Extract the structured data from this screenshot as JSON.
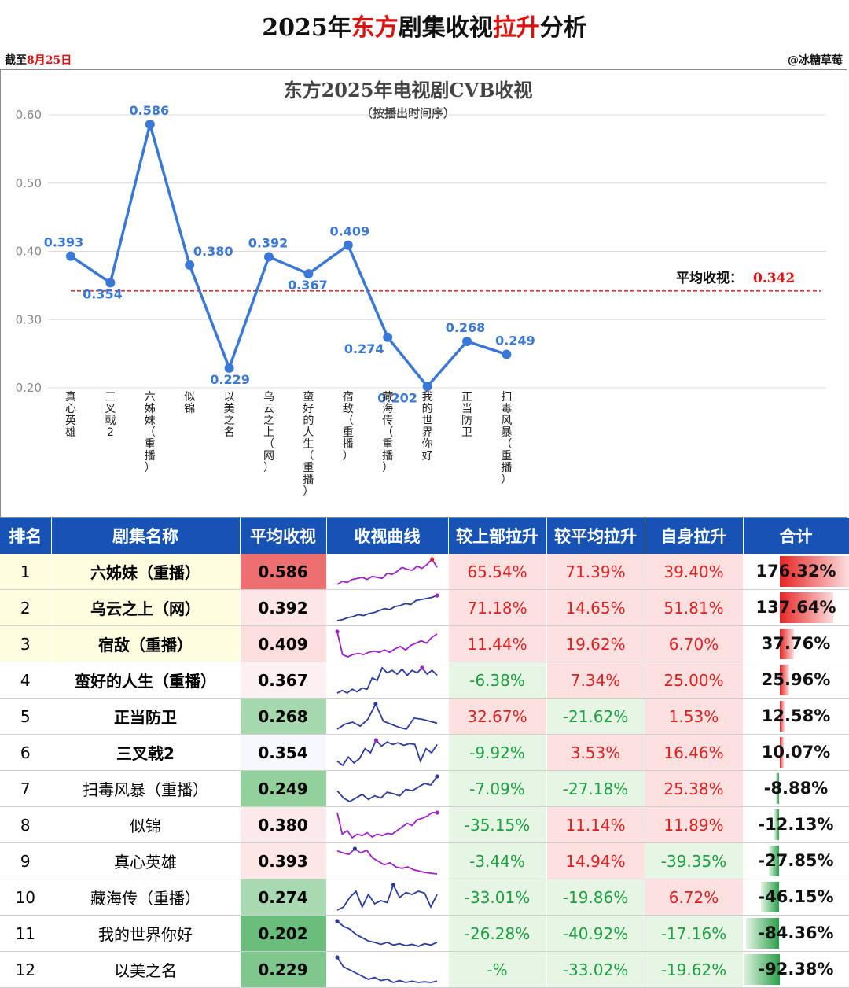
{
  "page": {
    "title_parts": [
      "2025年",
      "东方",
      "剧集收视",
      "拉升",
      "分析"
    ],
    "asof_prefix": "截至",
    "asof_date": "8月25日",
    "author": "@冰糖草莓"
  },
  "chart_data": {
    "type": "line",
    "title": "东方2025年电视剧CVB收视",
    "subtitle": "（按播出时间序）",
    "categories": [
      "真心英雄",
      "三叉戟2",
      "六姊妹（重播）",
      "似锦",
      "以美之名",
      "乌云之上（网）",
      "蛮好的人生（重播）",
      "宿敌（重播）",
      "藏海传（重播）",
      "我的世界你好",
      "正当防卫",
      "扫毒风暴（重播）"
    ],
    "values": [
      0.393,
      0.354,
      0.586,
      0.38,
      0.229,
      0.392,
      0.367,
      0.409,
      0.274,
      0.202,
      0.268,
      0.249
    ],
    "value_labels": [
      "0.393",
      "0.354",
      "0.586",
      "0.380",
      "0.229",
      "0.392",
      "0.367",
      "0.409",
      "0.274",
      "0.202",
      "0.268",
      "0.249"
    ],
    "yticks": [
      "0.20",
      "0.30",
      "0.40",
      "0.50",
      "0.60"
    ],
    "ylim": [
      0.2,
      0.6
    ],
    "grid": true,
    "average_label": "平均收视：",
    "average_value": 0.342,
    "average_text": "0.342",
    "line_color": "#3a78d8",
    "avg_color": "#e01010"
  },
  "table": {
    "headers": [
      "排名",
      "剧集名称",
      "平均收视",
      "收视曲线",
      "较上部拉升",
      "较平均拉升",
      "自身拉升",
      "合计"
    ],
    "header_color": "#1753b5",
    "rows": [
      {
        "rank": "1",
        "name": "六姊妹（重播）",
        "bold": true,
        "rating": "0.586",
        "rating_color": "#ee6f6f",
        "c1": "65.54%",
        "c2": "71.39%",
        "c3": "39.40%",
        "total": "176.32%",
        "total_value": 176.32,
        "spark": [
          0.55,
          0.58,
          0.57,
          0.6,
          0.61,
          0.62,
          0.6,
          0.63,
          0.62,
          0.61,
          0.66,
          0.65,
          0.68,
          0.72,
          0.7,
          0.69,
          0.73,
          0.71,
          0.75,
          0.8,
          0.72
        ],
        "spark_color": "#a020c8",
        "spark_end_color": "#e02020"
      },
      {
        "rank": "2",
        "name": "乌云之上（网）",
        "bold": true,
        "rating": "0.392",
        "rating_color": "#fce6e6",
        "c1": "71.18%",
        "c2": "14.65%",
        "c3": "51.81%",
        "total": "137.64%",
        "total_value": 137.64,
        "spark": [
          0.3,
          0.31,
          0.33,
          0.34,
          0.36,
          0.35,
          0.37,
          0.38,
          0.4,
          0.42,
          0.41,
          0.44,
          0.45,
          0.47,
          0.46,
          0.5,
          0.51,
          0.52,
          0.53,
          0.55
        ],
        "spark_color": "#2a3aa0",
        "spark_end_color": "#a020c8"
      },
      {
        "rank": "3",
        "name": "宿敌（重播）",
        "bold": true,
        "rating": "0.409",
        "rating_color": "#fcdede",
        "c1": "11.44%",
        "c2": "19.62%",
        "c3": "6.70%",
        "total": "37.76%",
        "total_value": 37.76,
        "spark": [
          0.6,
          0.4,
          0.38,
          0.4,
          0.41,
          0.4,
          0.42,
          0.43,
          0.42,
          0.44,
          0.42,
          0.45,
          0.47,
          0.44,
          0.48,
          0.5,
          0.52,
          0.5,
          0.55,
          0.58
        ],
        "spark_color": "#a020c8",
        "spark_end_color": "#a020c8"
      },
      {
        "rank": "4",
        "name": "蛮好的人生（重播）",
        "bold": true,
        "rating": "0.367",
        "rating_color": "#fdf0f3",
        "c1": "-6.38%",
        "c2": "7.34%",
        "c3": "25.00%",
        "total": "25.96%",
        "total_value": 25.96,
        "spark": [
          0.3,
          0.32,
          0.3,
          0.33,
          0.31,
          0.34,
          0.33,
          0.42,
          0.4,
          0.5,
          0.46,
          0.48,
          0.45,
          0.49,
          0.44,
          0.48,
          0.46,
          0.5,
          0.45,
          0.48,
          0.44
        ],
        "spark_color": "#2a3aa0",
        "spark_end_color": "#a020c8"
      },
      {
        "rank": "5",
        "name": "正当防卫",
        "bold": true,
        "rating": "0.268",
        "rating_color": "#a6d8ae",
        "c1": "32.67%",
        "c2": "-21.62%",
        "c3": "1.53%",
        "total": "12.58%",
        "total_value": 12.58,
        "spark": [
          0.25,
          0.3,
          0.32,
          0.28,
          0.35,
          0.5,
          0.33,
          0.3,
          0.27,
          0.25,
          0.36,
          0.35,
          0.33,
          0.31
        ],
        "spark_color": "#2a3aa0",
        "spark_end_color": "#2a3aa0"
      },
      {
        "rank": "6",
        "name": "三叉戟2",
        "bold": true,
        "rating": "0.354",
        "rating_color": "#f6f8fb",
        "c1": "-9.92%",
        "c2": "3.53%",
        "c3": "16.46%",
        "total": "10.07%",
        "total_value": 10.07,
        "spark": [
          0.3,
          0.25,
          0.35,
          0.28,
          0.33,
          0.45,
          0.4,
          0.55,
          0.48,
          0.53,
          0.5,
          0.52,
          0.49,
          0.51,
          0.5,
          0.3,
          0.45,
          0.4,
          0.5
        ],
        "spark_color": "#2a3aa0",
        "spark_end_color": "#a020c8"
      },
      {
        "rank": "7",
        "name": "扫毒风暴（重播）",
        "bold": false,
        "rating": "0.249",
        "rating_color": "#92d09c",
        "c1": "-7.09%",
        "c2": "-27.18%",
        "c3": "25.38%",
        "total": "-8.88%",
        "total_value": -8.88,
        "spark": [
          0.4,
          0.3,
          0.25,
          0.3,
          0.35,
          0.28,
          0.33,
          0.3,
          0.38,
          0.36,
          0.33,
          0.42,
          0.4,
          0.45,
          0.5,
          0.48,
          0.6
        ],
        "spark_color": "#2a3aa0",
        "spark_end_color": "#2a3aa0"
      },
      {
        "rank": "8",
        "name": "似锦",
        "bold": false,
        "rating": "0.380",
        "rating_color": "#fce9ec",
        "c1": "-35.15%",
        "c2": "11.14%",
        "c3": "11.89%",
        "total": "-12.13%",
        "total_value": -12.13,
        "spark": [
          0.7,
          0.4,
          0.45,
          0.35,
          0.4,
          0.38,
          0.42,
          0.36,
          0.4,
          0.38,
          0.41,
          0.4,
          0.45,
          0.5,
          0.55,
          0.52,
          0.6,
          0.62,
          0.65,
          0.7,
          0.7
        ],
        "spark_color": "#a020c8",
        "spark_end_color": "#a020c8"
      },
      {
        "rank": "9",
        "name": "真心英雄",
        "bold": false,
        "rating": "0.393",
        "rating_color": "#fce6e6",
        "c1": "-3.44%",
        "c2": "14.94%",
        "c3": "-39.35%",
        "total": "-27.85%",
        "total_value": -27.85,
        "spark": [
          0.65,
          0.62,
          0.6,
          0.68,
          0.62,
          0.66,
          0.55,
          0.5,
          0.45,
          0.48,
          0.42,
          0.4,
          0.42,
          0.38,
          0.36,
          0.34,
          0.33,
          0.32
        ],
        "spark_color": "#a020c8",
        "spark_end_color": "#2a3aa0"
      },
      {
        "rank": "10",
        "name": "藏海传（重播）",
        "bold": false,
        "rating": "0.274",
        "rating_color": "#a9d9b1",
        "c1": "-33.01%",
        "c2": "-19.86%",
        "c3": "6.72%",
        "total": "-46.15%",
        "total_value": -46.15,
        "spark": [
          0.3,
          0.35,
          0.5,
          0.6,
          0.35,
          0.55,
          0.4,
          0.45,
          0.42,
          0.7,
          0.5,
          0.58,
          0.55,
          0.6,
          0.57,
          0.35,
          0.55
        ],
        "spark_color": "#2a3aa0",
        "spark_end_color": "#2a3aa0"
      },
      {
        "rank": "11",
        "name": "我的世界你好",
        "bold": false,
        "rating": "0.202",
        "rating_color": "#6bbd7c",
        "c1": "-26.28%",
        "c2": "-40.92%",
        "c3": "-17.16%",
        "total": "-84.36%",
        "total_value": -84.36,
        "spark": [
          0.7,
          0.62,
          0.58,
          0.5,
          0.45,
          0.4,
          0.38,
          0.35,
          0.38,
          0.34,
          0.36,
          0.33,
          0.35,
          0.32,
          0.36,
          0.34,
          0.38
        ],
        "spark_color": "#2a3aa0",
        "spark_end_color": "#2a3aa0"
      },
      {
        "rank": "12",
        "name": "以美之名",
        "bold": false,
        "rating": "0.229",
        "rating_color": "#80c78e",
        "c1": "-%",
        "c2": "-33.02%",
        "c3": "-19.62%",
        "total": "-92.38%",
        "total_value": -92.38,
        "spark": [
          0.7,
          0.55,
          0.5,
          0.45,
          0.4,
          0.35,
          0.38,
          0.33,
          0.35,
          0.3,
          0.33,
          0.3,
          0.32,
          0.3,
          0.31,
          0.3,
          0.32
        ],
        "spark_color": "#2a3aa0",
        "spark_end_color": "#2a3aa0"
      }
    ]
  }
}
